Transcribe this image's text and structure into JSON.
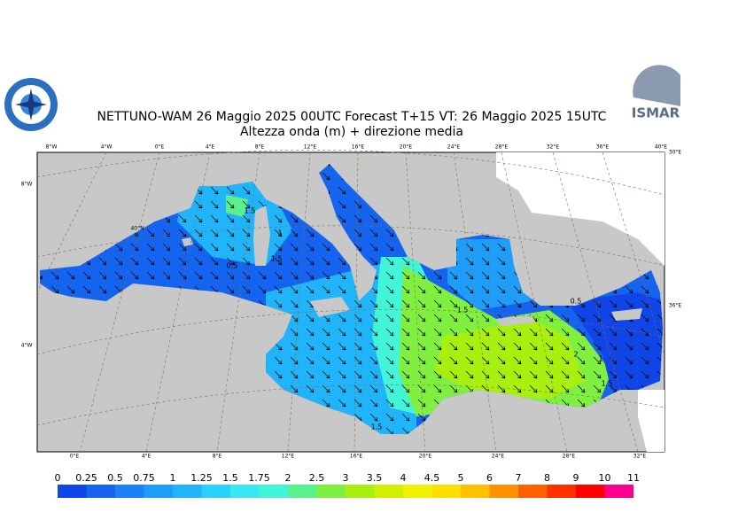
{
  "header": {
    "title": "NETTUNO-WAM  26   Maggio  2025 00UTC Forecast T+15 VT: 26   Maggio  2025 15UTC",
    "subtitle": "Altezza onda (m) + direzione media",
    "logo_right": "ISMAR"
  },
  "map": {
    "top_labels": [
      "8°W",
      "4°W",
      "0°E",
      "4°E",
      "8°E",
      "12°E",
      "16°E",
      "20°E",
      "24°E",
      "28°E",
      "32°E",
      "36°E",
      "40°E"
    ],
    "bottom_labels": [
      "0°E",
      "4°E",
      "8°E",
      "12°E",
      "16°E",
      "20°E",
      "24°E",
      "28°E",
      "32°E"
    ],
    "left_labels": [
      "8°W",
      "4°W"
    ],
    "inner_labels": [
      "40°N"
    ],
    "right_labels": [
      "30°E",
      "36°E"
    ],
    "contour_labels": [
      "1.5",
      "1",
      "0.5",
      "1.5",
      "1.5",
      "1.5",
      "0.5",
      "2",
      "1",
      "1.5"
    ]
  },
  "colorbar": {
    "ticks": [
      0,
      0.25,
      0.5,
      0.75,
      1,
      1.25,
      1.5,
      1.75,
      2,
      2.5,
      3,
      3.5,
      4,
      4.5,
      5,
      6,
      7,
      8,
      9,
      10,
      11
    ],
    "colors": [
      "#1046e8",
      "#1464f0",
      "#1a82f5",
      "#1e9ef8",
      "#20b4fa",
      "#28d2fa",
      "#3ae6f0",
      "#40f5d8",
      "#5af08c",
      "#80f040",
      "#a8f010",
      "#d0f000",
      "#f0f000",
      "#ffe000",
      "#ffc000",
      "#ff9000",
      "#ff6000",
      "#ff3000",
      "#ff0000",
      "#ff0090"
    ]
  }
}
